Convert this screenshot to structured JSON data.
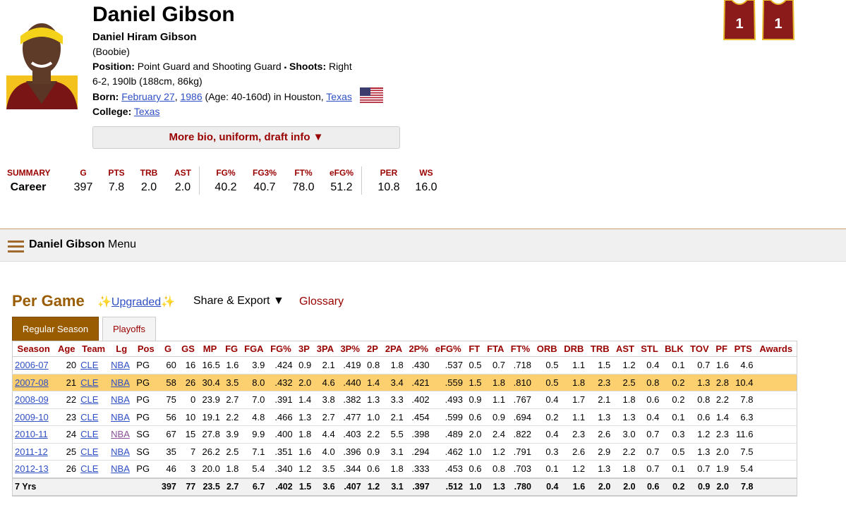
{
  "header": {
    "name": "Daniel Gibson",
    "full_name": "Daniel Hiram Gibson",
    "nickname": "(Boobie)",
    "position_label": "Position:",
    "position": "Point Guard and Shooting Guard",
    "separator": "▪",
    "shoots_label": "Shoots:",
    "shoots": "Right",
    "size": "6-2, 190lb (188cm, 86kg)",
    "born_label": "Born:",
    "born_date": "February 27",
    "born_comma": ",",
    "born_year": "1986",
    "born_rest": "(Age: 40-160d) in Houston,",
    "born_state": "Texas",
    "college_label": "College:",
    "college": "Texas",
    "more_button": "More bio, uniform, draft info ▼",
    "jerseys": [
      "1",
      "1"
    ]
  },
  "summary": {
    "headers": [
      "SUMMARY",
      "G",
      "PTS",
      "TRB",
      "AST",
      "FG%",
      "FG3%",
      "FT%",
      "eFG%",
      "PER",
      "WS"
    ],
    "row": [
      "Career",
      "397",
      "7.8",
      "2.0",
      "2.0",
      "40.2",
      "40.7",
      "78.0",
      "51.2",
      "10.8",
      "16.0"
    ]
  },
  "menu": {
    "name": "Daniel Gibson",
    "label": "Menu"
  },
  "section": {
    "title": "Per Game",
    "upgraded": "Upgraded",
    "share": "Share & Export ▼",
    "glossary": "Glossary",
    "tabs": [
      "Regular Season",
      "Playoffs"
    ]
  },
  "table": {
    "columns": [
      "Season",
      "Age",
      "Team",
      "Lg",
      "Pos",
      "G",
      "GS",
      "MP",
      "FG",
      "FGA",
      "FG%",
      "3P",
      "3PA",
      "3P%",
      "2P",
      "2PA",
      "2P%",
      "eFG%",
      "FT",
      "FTA",
      "FT%",
      "ORB",
      "DRB",
      "TRB",
      "AST",
      "STL",
      "BLK",
      "TOV",
      "PF",
      "PTS",
      "Awards"
    ],
    "rows": [
      [
        "2006-07",
        "20",
        "CLE",
        "NBA",
        "PG",
        "60",
        "16",
        "16.5",
        "1.6",
        "3.9",
        ".424",
        "0.9",
        "2.1",
        ".419",
        "0.8",
        "1.8",
        ".430",
        ".537",
        "0.5",
        "0.7",
        ".718",
        "0.5",
        "1.1",
        "1.5",
        "1.2",
        "0.4",
        "0.1",
        "0.7",
        "1.6",
        "4.6"
      ],
      [
        "2007-08",
        "21",
        "CLE",
        "NBA",
        "PG",
        "58",
        "26",
        "30.4",
        "3.5",
        "8.0",
        ".432",
        "2.0",
        "4.6",
        ".440",
        "1.4",
        "3.4",
        ".421",
        ".559",
        "1.5",
        "1.8",
        ".810",
        "0.5",
        "1.8",
        "2.3",
        "2.5",
        "0.8",
        "0.2",
        "1.3",
        "2.8",
        "10.4"
      ],
      [
        "2008-09",
        "22",
        "CLE",
        "NBA",
        "PG",
        "75",
        "0",
        "23.9",
        "2.7",
        "7.0",
        ".391",
        "1.4",
        "3.8",
        ".382",
        "1.3",
        "3.3",
        ".402",
        ".493",
        "0.9",
        "1.1",
        ".767",
        "0.4",
        "1.7",
        "2.1",
        "1.8",
        "0.6",
        "0.2",
        "0.8",
        "2.2",
        "7.8"
      ],
      [
        "2009-10",
        "23",
        "CLE",
        "NBA",
        "PG",
        "56",
        "10",
        "19.1",
        "2.2",
        "4.8",
        ".466",
        "1.3",
        "2.7",
        ".477",
        "1.0",
        "2.1",
        ".454",
        ".599",
        "0.6",
        "0.9",
        ".694",
        "0.2",
        "1.1",
        "1.3",
        "1.3",
        "0.4",
        "0.1",
        "0.6",
        "1.4",
        "6.3"
      ],
      [
        "2010-11",
        "24",
        "CLE",
        "NBA",
        "SG",
        "67",
        "15",
        "27.8",
        "3.9",
        "9.9",
        ".400",
        "1.8",
        "4.4",
        ".403",
        "2.2",
        "5.5",
        ".398",
        ".489",
        "2.0",
        "2.4",
        ".822",
        "0.4",
        "2.3",
        "2.6",
        "3.0",
        "0.7",
        "0.3",
        "1.2",
        "2.3",
        "11.6"
      ],
      [
        "2011-12",
        "25",
        "CLE",
        "NBA",
        "SG",
        "35",
        "7",
        "26.2",
        "2.5",
        "7.1",
        ".351",
        "1.6",
        "4.0",
        ".396",
        "0.9",
        "3.1",
        ".294",
        ".462",
        "1.0",
        "1.2",
        ".791",
        "0.3",
        "2.6",
        "2.9",
        "2.2",
        "0.7",
        "0.5",
        "1.3",
        "2.0",
        "7.5"
      ],
      [
        "2012-13",
        "26",
        "CLE",
        "NBA",
        "PG",
        "46",
        "3",
        "20.0",
        "1.8",
        "5.4",
        ".340",
        "1.2",
        "3.5",
        ".344",
        "0.6",
        "1.8",
        ".333",
        ".453",
        "0.6",
        "0.8",
        ".703",
        "0.1",
        "1.2",
        "1.3",
        "1.8",
        "0.7",
        "0.1",
        "0.7",
        "1.9",
        "5.4"
      ]
    ],
    "footer_label": "7 Yrs",
    "footer": [
      "397",
      "77",
      "23.5",
      "2.7",
      "6.7",
      ".402",
      "1.5",
      "3.6",
      ".407",
      "1.2",
      "3.1",
      ".397",
      ".512",
      "1.0",
      "1.3",
      ".780",
      "0.4",
      "1.6",
      "2.0",
      "2.0",
      "0.6",
      "0.2",
      "0.9",
      "2.0",
      "7.8"
    ]
  }
}
